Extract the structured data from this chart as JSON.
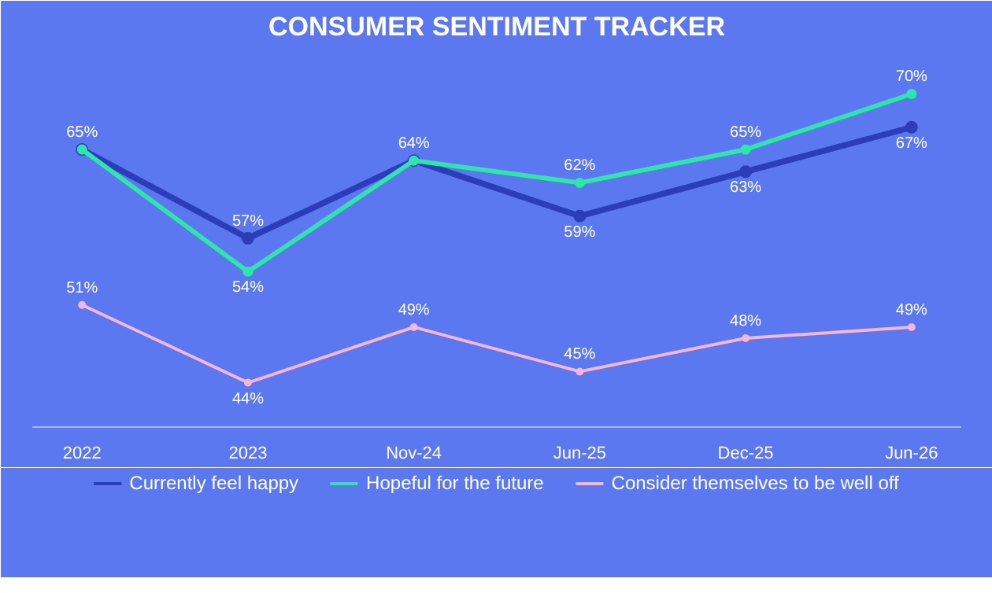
{
  "chart_data": {
    "type": "line",
    "title": "CONSUMER SENTIMENT TRACKER",
    "categories": [
      "2022",
      "2023",
      "Nov-24",
      "Jun-25",
      "Dec-25",
      "Jun-26"
    ],
    "ylim": [
      40,
      74
    ],
    "grid": false,
    "legend": "bottom",
    "marker": "circle",
    "line_style": "solid",
    "tick_labels": "x",
    "series": [
      {
        "name": "Currently feel happy",
        "color": "#2b3db8",
        "values": [
          65,
          57,
          64,
          59,
          63,
          67
        ],
        "value_labels": [
          null,
          "57%",
          null,
          "59%",
          "63%",
          "67%"
        ]
      },
      {
        "name": "Hopeful for the future",
        "color": "#2ee6a8",
        "values": [
          65,
          54,
          64,
          62,
          65,
          70
        ],
        "value_labels": [
          "65%",
          "54%",
          "64%",
          "62%",
          "65%",
          "70%"
        ]
      },
      {
        "name": "Consider themselves to be well off",
        "color": "#f7b6dc",
        "values": [
          51,
          44,
          49,
          45,
          48,
          49
        ],
        "value_labels": [
          "51%",
          "44%",
          "49%",
          "45%",
          "48%",
          "49%"
        ]
      }
    ]
  }
}
